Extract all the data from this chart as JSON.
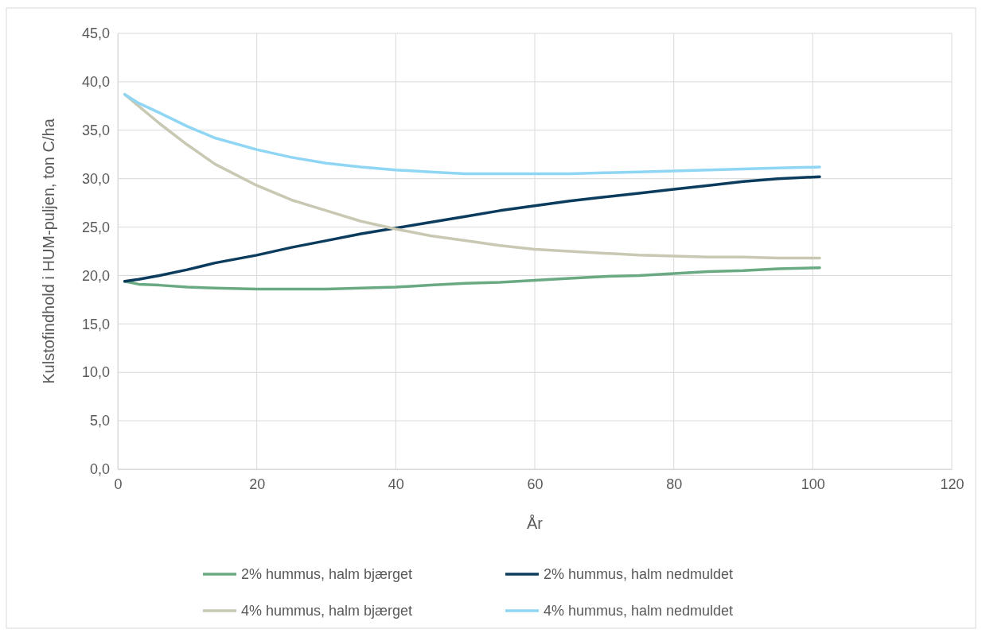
{
  "chart_data": {
    "type": "line",
    "xlabel": "År",
    "ylabel": "Kulstofindhold i HUM-puljen, ton C/ha",
    "xlim": [
      0,
      120
    ],
    "xticks": [
      0,
      20,
      40,
      60,
      80,
      100,
      120
    ],
    "ylim": [
      0,
      45
    ],
    "yticks": [
      {
        "value": 0,
        "label": "0,0"
      },
      {
        "value": 5,
        "label": "5,0"
      },
      {
        "value": 10,
        "label": "10,0"
      },
      {
        "value": 15,
        "label": "15,0"
      },
      {
        "value": 20,
        "label": "20,0"
      },
      {
        "value": 25,
        "label": "25,0"
      },
      {
        "value": 30,
        "label": "30,0"
      },
      {
        "value": 35,
        "label": "35,0"
      },
      {
        "value": 40,
        "label": "40,0"
      },
      {
        "value": 45,
        "label": "45,0"
      }
    ],
    "grid": true,
    "legend": "bottom",
    "marker": "none",
    "line_style": "solid",
    "x": [
      1,
      3,
      6,
      10,
      14,
      20,
      25,
      30,
      35,
      40,
      45,
      50,
      55,
      60,
      65,
      70,
      75,
      80,
      85,
      90,
      95,
      101
    ],
    "series": [
      {
        "name": "2% hummus, halm bjærget",
        "color": "#6aaa82",
        "values": [
          19.4,
          19.1,
          19.0,
          18.8,
          18.7,
          18.6,
          18.6,
          18.6,
          18.7,
          18.8,
          19.0,
          19.2,
          19.3,
          19.5,
          19.7,
          19.9,
          20.0,
          20.2,
          20.4,
          20.5,
          20.7,
          20.8
        ]
      },
      {
        "name": "2% hummus, halm nedmuldet",
        "color": "#0b3c5d",
        "values": [
          19.4,
          19.6,
          20.0,
          20.6,
          21.3,
          22.1,
          22.9,
          23.6,
          24.3,
          24.9,
          25.5,
          26.1,
          26.7,
          27.2,
          27.7,
          28.1,
          28.5,
          28.9,
          29.3,
          29.7,
          30.0,
          30.2
        ]
      },
      {
        "name": "4% hummus, halm bjærget",
        "color": "#c9c8b3",
        "values": [
          38.7,
          37.5,
          35.7,
          33.5,
          31.5,
          29.3,
          27.8,
          26.7,
          25.6,
          24.8,
          24.1,
          23.6,
          23.1,
          22.7,
          22.5,
          22.3,
          22.1,
          22.0,
          21.9,
          21.9,
          21.8,
          21.8
        ]
      },
      {
        "name": "4% hummus, halm nedmuldet",
        "color": "#8fd6f4",
        "values": [
          38.7,
          37.8,
          36.8,
          35.4,
          34.2,
          33.0,
          32.2,
          31.6,
          31.2,
          30.9,
          30.7,
          30.5,
          30.5,
          30.5,
          30.5,
          30.6,
          30.7,
          30.8,
          30.9,
          31.0,
          31.1,
          31.2
        ]
      }
    ]
  }
}
